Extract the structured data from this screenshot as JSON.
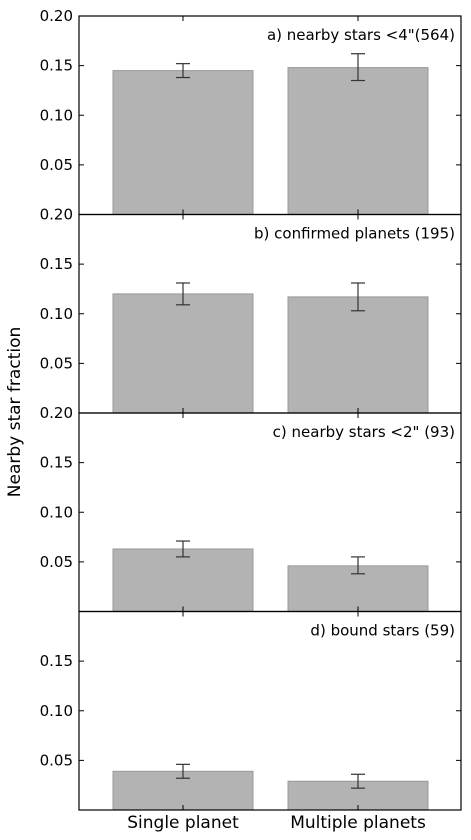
{
  "chart_data": {
    "type": "bar",
    "ylabel": "Nearby star fraction",
    "categories": [
      "Single planet",
      "Multiple planets"
    ],
    "ylim": [
      0,
      0.2
    ],
    "bar_color": "#b3b3b3",
    "bar_edge_color": "#999999",
    "error_color": "#333333",
    "panels": [
      {
        "title": "a) nearby stars <4\"(564)",
        "values": [
          0.145,
          0.148
        ],
        "errors": [
          [
            0.138,
            0.152
          ],
          [
            0.135,
            0.162
          ]
        ],
        "yticks": [
          "0.20",
          "0.15",
          "0.10",
          "0.05"
        ]
      },
      {
        "title": "b) confirmed planets (195)",
        "values": [
          0.12,
          0.117
        ],
        "errors": [
          [
            0.109,
            0.131
          ],
          [
            0.103,
            0.131
          ]
        ],
        "yticks": [
          "0.20",
          "0.15",
          "0.10",
          "0.05"
        ]
      },
      {
        "title": "c) nearby stars <2\" (93)",
        "values": [
          0.063,
          0.046
        ],
        "errors": [
          [
            0.055,
            0.071
          ],
          [
            0.038,
            0.055
          ]
        ],
        "yticks": [
          "0.20",
          "0.15",
          "0.10",
          "0.05"
        ]
      },
      {
        "title": "d) bound stars (59)",
        "values": [
          0.039,
          0.029
        ],
        "errors": [
          [
            0.032,
            0.046
          ],
          [
            0.022,
            0.036
          ]
        ],
        "yticks": [
          "0.15",
          "0.10",
          "0.05"
        ]
      }
    ]
  }
}
